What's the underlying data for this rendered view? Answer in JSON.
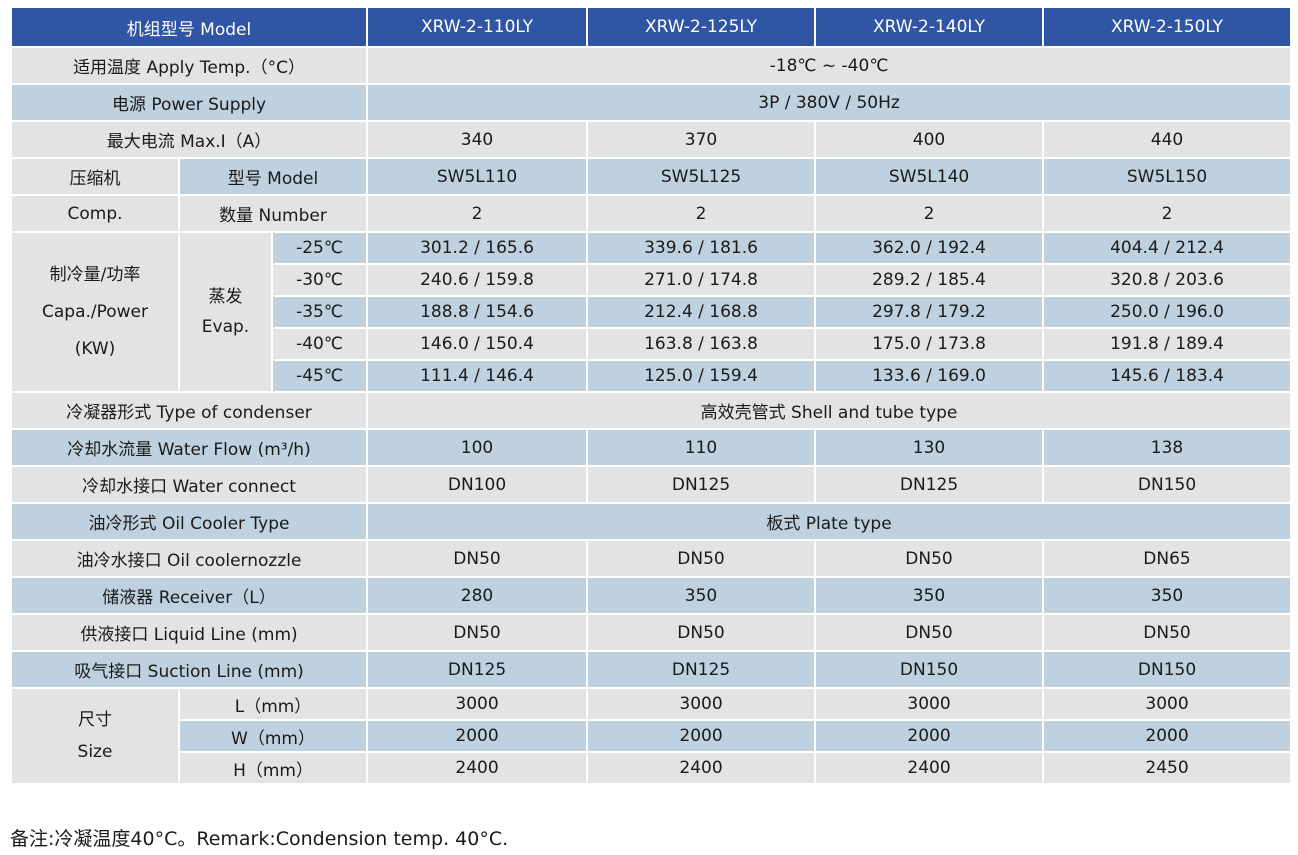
{
  "header": {
    "label": "机组型号 Model",
    "models": [
      "XRW-2-110LY",
      "XRW-2-125LY",
      "XRW-2-140LY",
      "XRW-2-150LY"
    ]
  },
  "apply_temp": {
    "label": "适用温度 Apply Temp.（°C）",
    "value": "-18℃ ~ -40℃"
  },
  "power_supply": {
    "label": "电源 Power Supply",
    "value": "3P / 380V / 50Hz"
  },
  "max_current": {
    "label": "最大电流 Max.I（A）",
    "values": [
      "340",
      "370",
      "400",
      "440"
    ]
  },
  "compressor": {
    "label_cn": "压缩机",
    "label_en": "Comp.",
    "model_label": "型号 Model",
    "models": [
      "SW5L110",
      "SW5L125",
      "SW5L140",
      "SW5L150"
    ],
    "number_label": "数量 Number",
    "numbers": [
      "2",
      "2",
      "2",
      "2"
    ]
  },
  "capacity": {
    "label_1": "制冷量/功率",
    "label_2": "Capa./Power",
    "label_3": "(KW)",
    "evap_cn": "蒸发",
    "evap_en": "Evap.",
    "rows": [
      {
        "temp": "-25℃",
        "values": [
          "301.2 / 165.6",
          "339.6 / 181.6",
          "362.0 / 192.4",
          "404.4 / 212.4"
        ]
      },
      {
        "temp": "-30℃",
        "values": [
          "240.6 / 159.8",
          "271.0 / 174.8",
          "289.2 / 185.4",
          "320.8 / 203.6"
        ]
      },
      {
        "temp": "-35℃",
        "values": [
          "188.8 / 154.6",
          "212.4 / 168.8",
          "297.8 / 179.2",
          "250.0 / 196.0"
        ]
      },
      {
        "temp": "-40℃",
        "values": [
          "146.0 / 150.4",
          "163.8 / 163.8",
          "175.0 / 173.8",
          "191.8 / 189.4"
        ]
      },
      {
        "temp": "-45℃",
        "values": [
          "111.4 / 146.4",
          "125.0 / 159.4",
          "133.6 / 169.0",
          "145.6 / 183.4"
        ]
      }
    ]
  },
  "condenser": {
    "label": "冷凝器形式 Type of condenser",
    "value": "高效壳管式 Shell and tube type"
  },
  "water_flow": {
    "label": "冷却水流量 Water Flow (m³/h)",
    "values": [
      "100",
      "110",
      "130",
      "138"
    ]
  },
  "water_connect": {
    "label": "冷却水接口 Water connect",
    "values": [
      "DN100",
      "DN125",
      "DN125",
      "DN150"
    ]
  },
  "oil_cooler": {
    "label": "油冷形式 Oil Cooler Type",
    "value": "板式 Plate type"
  },
  "oil_nozzle": {
    "label": "油冷水接口 Oil coolernozzle",
    "values": [
      "DN50",
      "DN50",
      "DN50",
      "DN65"
    ]
  },
  "receiver": {
    "label": "储液器 Receiver（L）",
    "values": [
      "280",
      "350",
      "350",
      "350"
    ]
  },
  "liquid_line": {
    "label": "供液接口 Liquid Line (mm)",
    "values": [
      "DN50",
      "DN50",
      "DN50",
      "DN50"
    ]
  },
  "suction_line": {
    "label": "吸气接口 Suction Line (mm)",
    "values": [
      "DN125",
      "DN125",
      "DN150",
      "DN150"
    ]
  },
  "size": {
    "label_cn": "尺寸",
    "label_en": "Size",
    "rows": [
      {
        "label": "L（mm）",
        "values": [
          "3000",
          "3000",
          "3000",
          "3000"
        ]
      },
      {
        "label": "W（mm）",
        "values": [
          "2000",
          "2000",
          "2000",
          "2000"
        ]
      },
      {
        "label": "H（mm）",
        "values": [
          "2400",
          "2400",
          "2400",
          "2450"
        ]
      }
    ]
  },
  "remark": "备注:冷凝温度40°C。Remark:Condension temp. 40°C."
}
